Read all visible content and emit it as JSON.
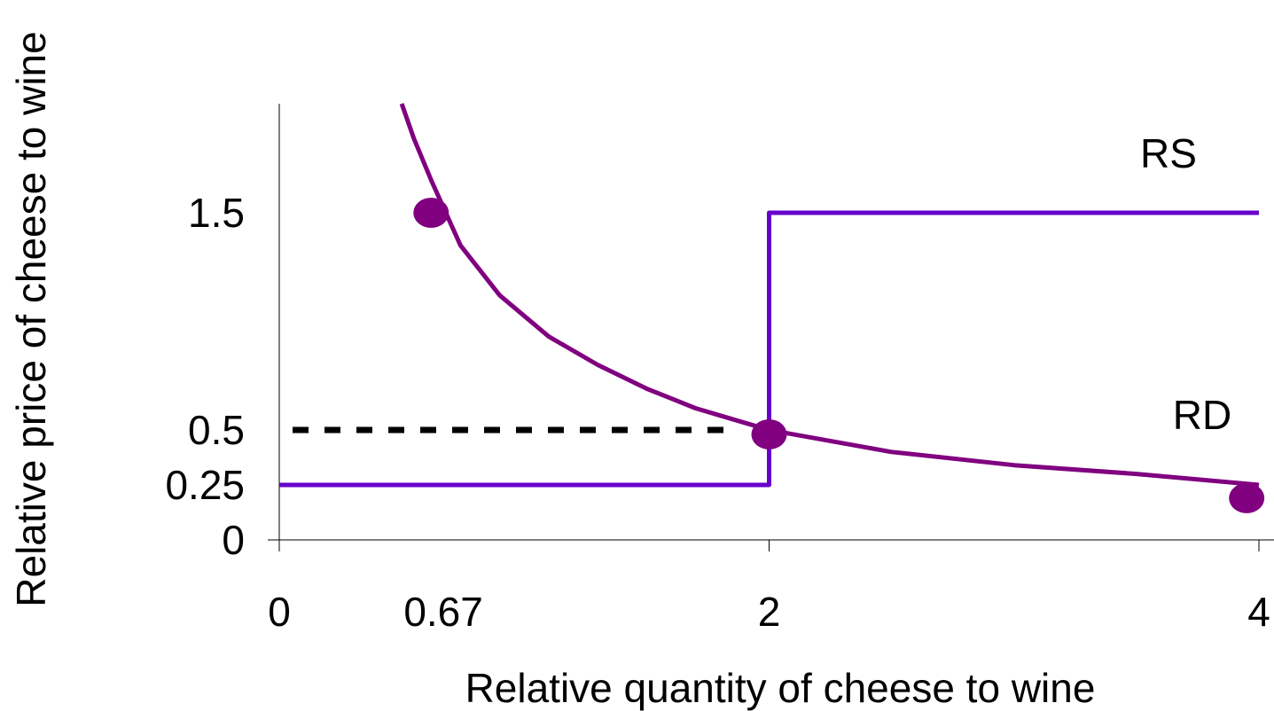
{
  "chart_data": {
    "type": "line",
    "title": "",
    "xlabel": "Relative quantity of cheese to wine",
    "ylabel": "Relative price of cheese to wine",
    "x_ticks": [
      "0",
      "0.67",
      "2",
      "4"
    ],
    "y_ticks": [
      "0",
      "0.25",
      "0.5",
      "1.5"
    ],
    "series": [
      {
        "name": "RS",
        "color": "#6600cc",
        "points": [
          [
            0,
            0.25
          ],
          [
            2,
            0.25
          ],
          [
            2,
            1.5
          ],
          [
            4,
            1.5
          ]
        ]
      },
      {
        "name": "RD",
        "color": "#800080",
        "points": [
          [
            0.5,
            2
          ],
          [
            0.55,
            1.84
          ],
          [
            0.62,
            1.65
          ],
          [
            0.74,
            1.35
          ],
          [
            0.9,
            1.12
          ],
          [
            1.1,
            0.93
          ],
          [
            1.3,
            0.8
          ],
          [
            1.5,
            0.69
          ],
          [
            1.7,
            0.6
          ],
          [
            1.85,
            0.55
          ],
          [
            2.0,
            0.5
          ],
          [
            2.5,
            0.4
          ],
          [
            3.0,
            0.34
          ],
          [
            3.5,
            0.3
          ],
          [
            4.0,
            0.25
          ]
        ]
      }
    ],
    "reference_lines": [
      {
        "style": "dashed",
        "color": "#000000",
        "from": [
          0,
          0.5
        ],
        "to": [
          2,
          0.5
        ]
      }
    ],
    "markers": [
      {
        "x": 0.62,
        "y": 1.5
      },
      {
        "x": 2.0,
        "y": 0.48
      },
      {
        "x": 3.95,
        "y": 0.19
      }
    ],
    "marker_color": "#800080",
    "xlim": [
      0,
      4
    ],
    "ylim": [
      0,
      2
    ],
    "grid": false
  }
}
